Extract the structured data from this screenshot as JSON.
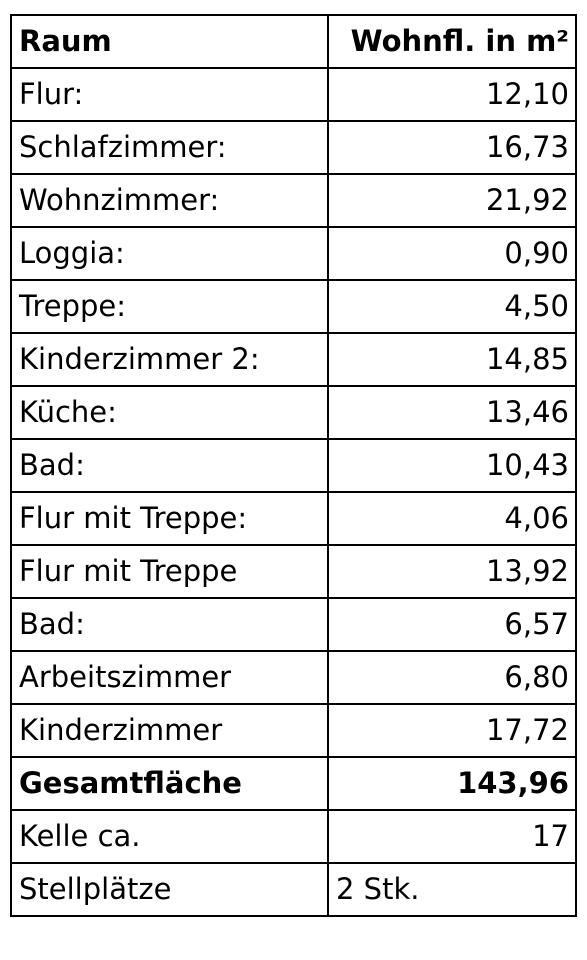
{
  "table": {
    "header": {
      "room": "Raum",
      "area": "Wohnfl. in m²"
    },
    "rows": [
      {
        "room": "Flur:",
        "area": "12,10"
      },
      {
        "room": "Schlafzimmer:",
        "area": "16,73"
      },
      {
        "room": "Wohnzimmer:",
        "area": "21,92"
      },
      {
        "room": "Loggia:",
        "area": "0,90"
      },
      {
        "room": "Treppe:",
        "area": "4,50"
      },
      {
        "room": "Kinderzimmer 2:",
        "area": "14,85"
      },
      {
        "room": "Küche:",
        "area": "13,46"
      },
      {
        "room": "Bad:",
        "area": "10,43"
      },
      {
        "room": "Flur mit Treppe:",
        "area": "4,06"
      },
      {
        "room": "Flur mit Treppe",
        "area": "13,92"
      },
      {
        "room": "Bad:",
        "area": "6,57"
      },
      {
        "room": "Arbeitszimmer",
        "area": "6,80"
      },
      {
        "room": "Kinderzimmer",
        "area": "17,72"
      }
    ],
    "total": {
      "room": "Gesamtfläche",
      "area": "143,96"
    },
    "extra": [
      {
        "room": "Kelle ca.",
        "area": "17",
        "align": "right"
      },
      {
        "room": "Stellplätze",
        "area": "2 Stk.",
        "align": "left"
      }
    ]
  }
}
